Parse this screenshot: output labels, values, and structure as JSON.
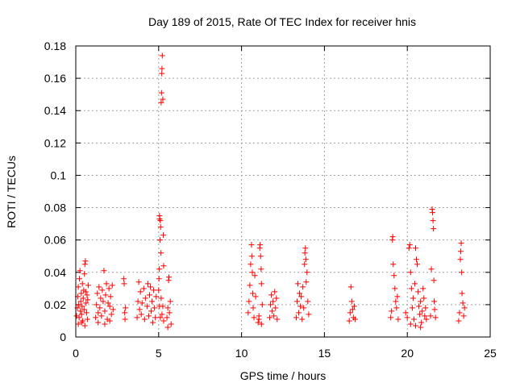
{
  "chart_data": {
    "type": "scatter",
    "title": "Day 189 of 2015, Rate Of TEC Index for receiver hnis",
    "xlabel": "GPS time / hours",
    "ylabel": "ROTI / TECUs",
    "xlim": [
      0,
      25
    ],
    "ylim": [
      0,
      0.18
    ],
    "xticks": [
      0,
      5,
      10,
      15,
      20,
      25
    ],
    "xtick_labels": [
      "0",
      "5",
      "10",
      "15",
      "20",
      "25"
    ],
    "yticks": [
      0,
      0.02,
      0.04,
      0.06,
      0.08,
      0.1,
      0.12,
      0.14,
      0.16,
      0.18
    ],
    "ytick_labels": [
      "0",
      "0.02",
      "0.04",
      "0.06",
      "0.08",
      "0.1",
      "0.12",
      "0.14",
      "0.16",
      "0.18"
    ],
    "grid": true,
    "marker": "+",
    "color": "#ff0000",
    "series": [
      {
        "name": "ROTI",
        "points": [
          [
            0.05,
            0.013
          ],
          [
            0.1,
            0.018
          ],
          [
            0.12,
            0.025
          ],
          [
            0.15,
            0.031
          ],
          [
            0.18,
            0.02
          ],
          [
            0.2,
            0.012
          ],
          [
            0.22,
            0.036
          ],
          [
            0.25,
            0.041
          ],
          [
            0.28,
            0.016
          ],
          [
            0.3,
            0.022
          ],
          [
            0.33,
            0.027
          ],
          [
            0.35,
            0.014
          ],
          [
            0.38,
            0.019
          ],
          [
            0.4,
            0.033
          ],
          [
            0.42,
            0.01
          ],
          [
            0.45,
            0.024
          ],
          [
            0.48,
            0.029
          ],
          [
            0.5,
            0.017
          ],
          [
            0.52,
            0.039
          ],
          [
            0.55,
            0.045
          ],
          [
            0.58,
            0.047
          ],
          [
            0.6,
            0.028
          ],
          [
            0.62,
            0.021
          ],
          [
            0.65,
            0.015
          ],
          [
            0.68,
            0.026
          ],
          [
            0.7,
            0.011
          ],
          [
            0.72,
            0.023
          ],
          [
            0.75,
            0.032
          ],
          [
            0.15,
            0.008
          ],
          [
            0.35,
            0.009
          ],
          [
            0.55,
            0.007
          ],
          [
            1.2,
            0.012
          ],
          [
            1.25,
            0.02
          ],
          [
            1.3,
            0.027
          ],
          [
            1.35,
            0.015
          ],
          [
            1.4,
            0.031
          ],
          [
            1.45,
            0.018
          ],
          [
            1.5,
            0.024
          ],
          [
            1.55,
            0.013
          ],
          [
            1.6,
            0.029
          ],
          [
            1.65,
            0.022
          ],
          [
            1.7,
            0.041
          ],
          [
            1.75,
            0.016
          ],
          [
            1.8,
            0.026
          ],
          [
            1.85,
            0.033
          ],
          [
            1.9,
            0.011
          ],
          [
            1.95,
            0.021
          ],
          [
            2.0,
            0.03
          ],
          [
            2.05,
            0.019
          ],
          [
            2.1,
            0.025
          ],
          [
            2.15,
            0.014
          ],
          [
            2.2,
            0.032
          ],
          [
            2.25,
            0.017
          ],
          [
            1.35,
            0.009
          ],
          [
            1.75,
            0.008
          ],
          [
            2.05,
            0.01
          ],
          [
            2.9,
            0.036
          ],
          [
            2.92,
            0.033
          ],
          [
            2.95,
            0.015
          ],
          [
            2.97,
            0.011
          ],
          [
            3.0,
            0.018
          ],
          [
            3.7,
            0.012
          ],
          [
            3.75,
            0.022
          ],
          [
            3.8,
            0.034
          ],
          [
            3.85,
            0.017
          ],
          [
            3.9,
            0.028
          ],
          [
            3.95,
            0.014
          ],
          [
            4.0,
            0.021
          ],
          [
            4.1,
            0.03
          ],
          [
            4.15,
            0.011
          ],
          [
            4.2,
            0.024
          ],
          [
            4.3,
            0.019
          ],
          [
            4.35,
            0.033
          ],
          [
            4.4,
            0.013
          ],
          [
            4.45,
            0.026
          ],
          [
            4.5,
            0.031
          ],
          [
            4.55,
            0.016
          ],
          [
            4.6,
            0.022
          ],
          [
            4.65,
            0.009
          ],
          [
            4.7,
            0.029
          ],
          [
            4.75,
            0.018
          ],
          [
            4.8,
            0.012
          ],
          [
            4.85,
            0.025
          ],
          [
            5.0,
            0.029
          ],
          [
            5.02,
            0.036
          ],
          [
            5.04,
            0.042
          ],
          [
            5.05,
            0.075
          ],
          [
            5.06,
            0.073
          ],
          [
            5.08,
            0.06
          ],
          [
            5.1,
            0.072
          ],
          [
            5.12,
            0.068
          ],
          [
            5.14,
            0.052
          ],
          [
            5.15,
            0.145
          ],
          [
            5.17,
            0.151
          ],
          [
            5.19,
            0.163
          ],
          [
            5.2,
            0.166
          ],
          [
            5.22,
            0.174
          ],
          [
            5.25,
            0.147
          ],
          [
            5.28,
            0.063
          ],
          [
            5.3,
            0.044
          ],
          [
            5.05,
            0.019
          ],
          [
            5.1,
            0.012
          ],
          [
            5.15,
            0.024
          ],
          [
            5.2,
            0.014
          ],
          [
            5.25,
            0.019
          ],
          [
            5.3,
            0.01
          ],
          [
            5.5,
            0.012
          ],
          [
            5.55,
            0.018
          ],
          [
            5.6,
            0.035
          ],
          [
            5.62,
            0.037
          ],
          [
            5.65,
            0.015
          ],
          [
            5.7,
            0.022
          ],
          [
            5.75,
            0.008
          ],
          [
            5.55,
            0.006
          ],
          [
            10.4,
            0.015
          ],
          [
            10.45,
            0.022
          ],
          [
            10.5,
            0.032
          ],
          [
            10.55,
            0.045
          ],
          [
            10.6,
            0.057
          ],
          [
            10.62,
            0.05
          ],
          [
            10.65,
            0.04
          ],
          [
            10.68,
            0.027
          ],
          [
            10.7,
            0.018
          ],
          [
            10.75,
            0.012
          ],
          [
            10.8,
            0.038
          ],
          [
            10.85,
            0.025
          ],
          [
            11.0,
            0.009
          ],
          [
            11.05,
            0.013
          ],
          [
            11.1,
            0.055
          ],
          [
            11.12,
            0.057
          ],
          [
            11.15,
            0.05
          ],
          [
            11.18,
            0.042
          ],
          [
            11.2,
            0.033
          ],
          [
            11.25,
            0.02
          ],
          [
            11.05,
            0.011
          ],
          [
            11.2,
            0.008
          ],
          [
            11.7,
            0.012
          ],
          [
            11.75,
            0.02
          ],
          [
            11.8,
            0.026
          ],
          [
            11.85,
            0.016
          ],
          [
            11.9,
            0.022
          ],
          [
            11.95,
            0.013
          ],
          [
            12.0,
            0.028
          ],
          [
            12.05,
            0.018
          ],
          [
            12.1,
            0.024
          ],
          [
            12.15,
            0.011
          ],
          [
            13.3,
            0.012
          ],
          [
            13.35,
            0.022
          ],
          [
            13.4,
            0.033
          ],
          [
            13.45,
            0.015
          ],
          [
            13.5,
            0.027
          ],
          [
            13.55,
            0.019
          ],
          [
            13.6,
            0.025
          ],
          [
            13.65,
            0.011
          ],
          [
            13.7,
            0.031
          ],
          [
            13.75,
            0.018
          ],
          [
            13.8,
            0.045
          ],
          [
            13.82,
            0.052
          ],
          [
            13.85,
            0.055
          ],
          [
            13.88,
            0.048
          ],
          [
            13.9,
            0.034
          ],
          [
            13.95,
            0.04
          ],
          [
            14.0,
            0.022
          ],
          [
            14.05,
            0.014
          ],
          [
            16.5,
            0.01
          ],
          [
            16.55,
            0.015
          ],
          [
            16.6,
            0.031
          ],
          [
            16.65,
            0.022
          ],
          [
            16.7,
            0.017
          ],
          [
            16.75,
            0.012
          ],
          [
            16.8,
            0.019
          ],
          [
            16.85,
            0.011
          ],
          [
            19.0,
            0.012
          ],
          [
            19.05,
            0.016
          ],
          [
            19.1,
            0.06
          ],
          [
            19.12,
            0.062
          ],
          [
            19.15,
            0.045
          ],
          [
            19.2,
            0.038
          ],
          [
            19.25,
            0.03
          ],
          [
            19.3,
            0.022
          ],
          [
            19.35,
            0.018
          ],
          [
            19.4,
            0.025
          ],
          [
            19.45,
            0.011
          ],
          [
            19.9,
            0.015
          ],
          [
            20.0,
            0.012
          ],
          [
            20.1,
            0.055
          ],
          [
            20.15,
            0.057
          ],
          [
            20.2,
            0.04
          ],
          [
            20.25,
            0.03
          ],
          [
            20.3,
            0.018
          ],
          [
            20.35,
            0.024
          ],
          [
            20.4,
            0.011
          ],
          [
            20.45,
            0.033
          ],
          [
            20.5,
            0.055
          ],
          [
            20.55,
            0.048
          ],
          [
            20.6,
            0.045
          ],
          [
            20.65,
            0.028
          ],
          [
            20.7,
            0.019
          ],
          [
            20.75,
            0.014
          ],
          [
            20.8,
            0.022
          ],
          [
            20.85,
            0.009
          ],
          [
            20.9,
            0.016
          ],
          [
            20.95,
            0.03
          ],
          [
            21.0,
            0.024
          ],
          [
            21.05,
            0.013
          ],
          [
            21.1,
            0.018
          ],
          [
            21.15,
            0.011
          ],
          [
            20.2,
            0.008
          ],
          [
            20.5,
            0.007
          ],
          [
            20.8,
            0.006
          ],
          [
            21.4,
            0.013
          ],
          [
            21.45,
            0.042
          ],
          [
            21.5,
            0.079
          ],
          [
            21.52,
            0.077
          ],
          [
            21.55,
            0.072
          ],
          [
            21.58,
            0.067
          ],
          [
            21.6,
            0.035
          ],
          [
            21.62,
            0.022
          ],
          [
            21.65,
            0.017
          ],
          [
            21.7,
            0.012
          ],
          [
            23.1,
            0.01
          ],
          [
            23.15,
            0.015
          ],
          [
            23.2,
            0.048
          ],
          [
            23.22,
            0.053
          ],
          [
            23.25,
            0.058
          ],
          [
            23.28,
            0.04
          ],
          [
            23.3,
            0.027
          ],
          [
            23.35,
            0.021
          ],
          [
            23.4,
            0.013
          ],
          [
            23.45,
            0.018
          ]
        ]
      }
    ]
  }
}
